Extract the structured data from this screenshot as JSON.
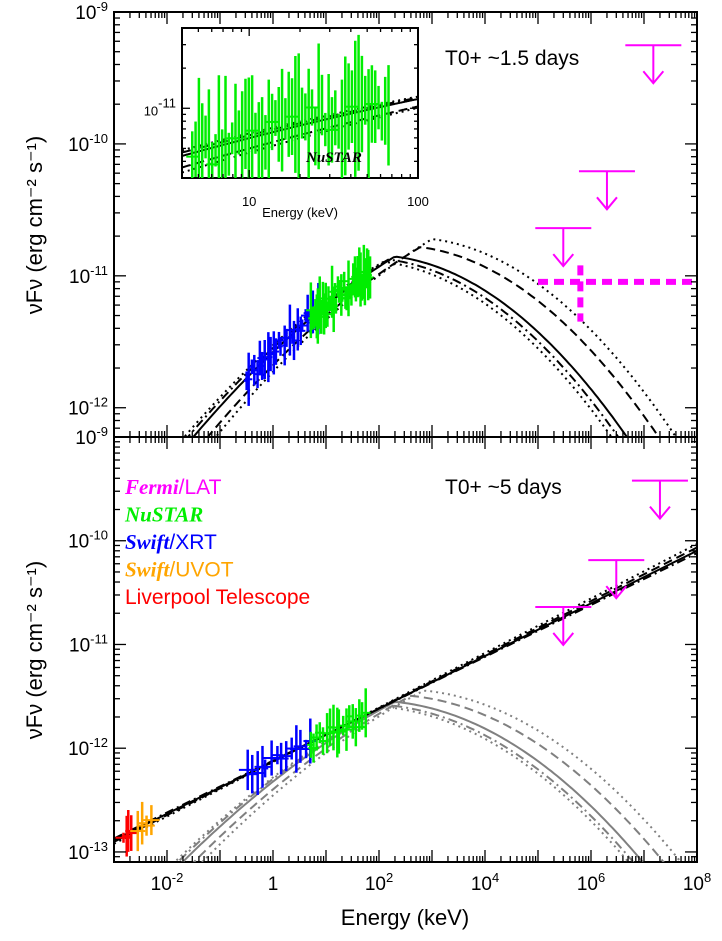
{
  "chart_data": [
    {
      "id": "top",
      "type": "line",
      "annotation": "T0+ ~1.5 days",
      "xlabel": "",
      "ylabel": "νFν (erg cm⁻² s⁻¹)",
      "xscale": "log",
      "yscale": "log",
      "xlim": [
        0.001,
        100000000
      ],
      "ylim": [
        6e-13,
        1e-09
      ],
      "ytick_labels": [
        {
          "v": 1e-09,
          "m": "10",
          "e": "-9"
        },
        {
          "v": 1e-10,
          "m": "10",
          "e": "-10"
        },
        {
          "v": 1e-11,
          "m": "10",
          "e": "-11"
        },
        {
          "v": 1e-12,
          "m": "10",
          "e": "-12"
        }
      ],
      "models": [
        {
          "style": "solid",
          "peak_e": 200,
          "peak_f": 1.4e-11,
          "ref_f": 7e-13
        },
        {
          "style": "dashed",
          "peak_e": 600,
          "peak_f": 1.65e-11,
          "ref_f": 6.9e-13
        },
        {
          "style": "dotted",
          "peak_e": 1000,
          "peak_f": 1.9e-11,
          "ref_f": 6.4e-13
        },
        {
          "style": "dotdash",
          "peak_e": 150,
          "peak_f": 1.33e-11,
          "ref_f": 7.4e-13
        },
        {
          "style": "dotted",
          "peak_e": 120,
          "peak_f": 1.28e-11,
          "ref_f": 7.6e-13
        }
      ],
      "data_groups": [
        {
          "instrument": "Liverpool Telescope",
          "color": "#ff0000",
          "e_range": [
            0.0013,
            0.0019
          ],
          "count": 3,
          "scatter": 0.04
        },
        {
          "instrument": "Swift/UVOT",
          "color": "#ffa500",
          "e_range": [
            0.003,
            0.006
          ],
          "count": 5,
          "scatter": 0.06
        },
        {
          "instrument": "Swift/XRT",
          "color": "#0000ff",
          "e_range": [
            0.3,
            8
          ],
          "count": 28,
          "scatter": 0.12
        },
        {
          "instrument": "NuSTAR",
          "color": "#00ee00",
          "e_range": [
            5,
            70
          ],
          "count": 40,
          "scatter": 0.16
        }
      ],
      "upper_limits": [
        {
          "e": 300000,
          "f": 2.3e-11,
          "color": "#ff00ff"
        },
        {
          "e": 2000000,
          "f": 6.2e-11,
          "color": "#ff00ff"
        },
        {
          "e": 15000000,
          "f": 5.6e-10,
          "color": "#ff00ff"
        }
      ],
      "detection": {
        "e_min": 100000,
        "e_max": 100000000,
        "e_point": 630000,
        "f": 9e-12,
        "f_low": 4.5e-12,
        "f_high": 1.2e-11,
        "color": "#ff00ff"
      },
      "inset": {
        "label": "NuSTAR",
        "xlabel": "Energy (keV)",
        "xlim": [
          4,
          100
        ],
        "ylim": [
          3e-12,
          4e-11
        ],
        "xticks": [
          {
            "v": 10,
            "label": "10"
          },
          {
            "v": 100,
            "label": "100"
          }
        ],
        "ytick": {
          "v": 1e-11,
          "m": "10",
          "e": "-11"
        }
      }
    },
    {
      "id": "bottom",
      "type": "line",
      "annotation": "T0+ ~5 days",
      "xlabel": "Energy (keV)",
      "ylabel": "νFν (erg cm⁻² s⁻¹)",
      "xscale": "log",
      "yscale": "log",
      "xlim": [
        0.001,
        100000000
      ],
      "ylim": [
        8e-14,
        1e-09
      ],
      "xtick_labels": [
        {
          "v": 0.01,
          "m": "10",
          "e": "-2"
        },
        {
          "v": 1,
          "m": "1",
          "e": ""
        },
        {
          "v": 100,
          "m": "10",
          "e": "2"
        },
        {
          "v": 10000,
          "m": "10",
          "e": "4"
        },
        {
          "v": 1000000,
          "m": "10",
          "e": "6"
        },
        {
          "v": 100000000,
          "m": "10",
          "e": "8"
        }
      ],
      "ytick_labels": [
        {
          "v": 1e-09,
          "m": "10",
          "e": "-9"
        },
        {
          "v": 1e-10,
          "m": "10",
          "e": "-10"
        },
        {
          "v": 1e-11,
          "m": "10",
          "e": "-11"
        },
        {
          "v": 1e-12,
          "m": "10",
          "e": "-12"
        },
        {
          "v": 1e-13,
          "m": "10",
          "e": "-13"
        }
      ],
      "legend": [
        {
          "name": "Fermi",
          "suffix": "/LAT",
          "color": "#ff00ff",
          "italic": true
        },
        {
          "name": "NuSTAR",
          "suffix": "",
          "color": "#00ee00",
          "italic": true
        },
        {
          "name": "Swift",
          "suffix": "/XRT",
          "color": "#0000ff",
          "italic": true
        },
        {
          "name": "Swift",
          "suffix": "/UVOT",
          "color": "#ffa500",
          "italic": true
        },
        {
          "name": "Liverpool Telescope",
          "suffix": "",
          "color": "#ff0000",
          "italic": false
        }
      ],
      "power_laws": [
        {
          "style": "solid",
          "color": "#000000",
          "e0": 0.001,
          "f0": 1.3e-13,
          "e1": 100000000,
          "f1": 8e-11
        },
        {
          "style": "dashed",
          "color": "#000000",
          "e0": 0.001,
          "f0": 1.25e-13,
          "e1": 100000000,
          "f1": 8.6e-11
        },
        {
          "style": "dotted",
          "color": "#000000",
          "e0": 0.001,
          "f0": 1.2e-13,
          "e1": 100000000,
          "f1": 9.3e-11
        },
        {
          "style": "dotdash",
          "color": "#000000",
          "e0": 0.001,
          "f0": 1.35e-13,
          "e1": 100000000,
          "f1": 7.6e-11
        }
      ],
      "models": [
        {
          "style": "solid",
          "color": "#808080",
          "peak_e": 200,
          "peak_f": 2.8e-12,
          "ref_f": 1.1e-13
        },
        {
          "style": "dashed",
          "color": "#808080",
          "peak_e": 400,
          "peak_f": 3.2e-12,
          "ref_f": 1e-13
        },
        {
          "style": "dotted",
          "color": "#808080",
          "peak_e": 700,
          "peak_f": 3.6e-12,
          "ref_f": 9.5e-14
        },
        {
          "style": "dotdash",
          "color": "#808080",
          "peak_e": 150,
          "peak_f": 2.6e-12,
          "ref_f": 1.15e-13
        },
        {
          "style": "dotted",
          "color": "#808080",
          "peak_e": 130,
          "peak_f": 2.5e-12,
          "ref_f": 1.2e-13
        }
      ],
      "data_groups": [
        {
          "instrument": "Liverpool Telescope",
          "color": "#ff0000",
          "e_range": [
            0.0015,
            0.0022
          ],
          "count": 4,
          "scatter": 0.05
        },
        {
          "instrument": "Swift/UVOT",
          "color": "#ffa500",
          "e_range": [
            0.0028,
            0.0055
          ],
          "count": 4,
          "scatter": 0.08
        },
        {
          "instrument": "Swift/XRT",
          "color": "#0000ff",
          "e_range": [
            0.3,
            6
          ],
          "count": 14,
          "scatter": 0.12
        },
        {
          "instrument": "NuSTAR",
          "color": "#00ee00",
          "e_range": [
            5,
            60
          ],
          "count": 18,
          "scatter": 0.15
        }
      ],
      "upper_limits": [
        {
          "e": 300000,
          "f": 2.3e-11,
          "color": "#ff00ff"
        },
        {
          "e": 3000000,
          "f": 6.5e-11,
          "color": "#ff00ff"
        },
        {
          "e": 20000000,
          "f": 3.8e-10,
          "color": "#ff00ff"
        }
      ]
    }
  ]
}
